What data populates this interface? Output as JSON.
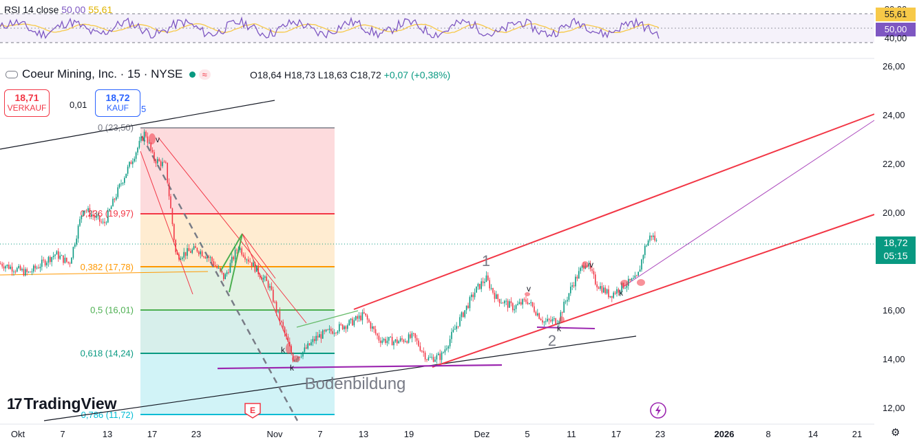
{
  "header": {
    "title": "Coeur Mining, Inc. · 15 · NYSE",
    "wave_badge": "≈",
    "open": "O18,64",
    "high": "H18,73",
    "low": "L18,63",
    "close": "C18,72",
    "change": "+0,07 (+0,38%)"
  },
  "trade": {
    "sell_price": "18,71",
    "sell_label": "VERKAUF",
    "spread": "0,01",
    "buy_price": "18,72",
    "buy_label": "KAUF",
    "extra": "5"
  },
  "rsi": {
    "label": "RSI 14 close",
    "v1": "50,00",
    "v2": "55,61",
    "ticks": [
      "80,00",
      "40,00"
    ],
    "tag_ma": "55,61",
    "tag_rsi": "50,00"
  },
  "current": {
    "price": "18,72",
    "countdown": "05:15"
  },
  "logo": "TradingView",
  "chart_data": {
    "type": "candlestick",
    "y_ticks": [
      "26,00",
      "24,00",
      "22,00",
      "20,00",
      "16,00",
      "14,00",
      "12,00"
    ],
    "x_ticks": [
      "Okt",
      "7",
      "13",
      "17",
      "23",
      "Nov",
      "7",
      "13",
      "19",
      "Dez",
      "5",
      "11",
      "17",
      "23",
      "2026",
      "8",
      "14",
      "21"
    ],
    "fib_levels": [
      {
        "label": "0 (23,50)",
        "value": 23.5
      },
      {
        "label": "0,236 (19,97)",
        "value": 19.97
      },
      {
        "label": "0,382 (17,78)",
        "value": 17.78
      },
      {
        "label": "0,5 (16,01)",
        "value": 16.01
      },
      {
        "label": "0,618 (14,24)",
        "value": 14.24
      },
      {
        "label": "0,786 (11,72)",
        "value": 11.72
      }
    ],
    "annotations": [
      "Bodenbildung",
      "1",
      "2",
      "v",
      "v",
      "v",
      "k",
      "k",
      "k",
      "k",
      "E"
    ],
    "colors": {
      "up": "#089981",
      "down": "#f23645",
      "rsi": "#7e57c2",
      "rsi_ma": "#f7c948"
    }
  }
}
